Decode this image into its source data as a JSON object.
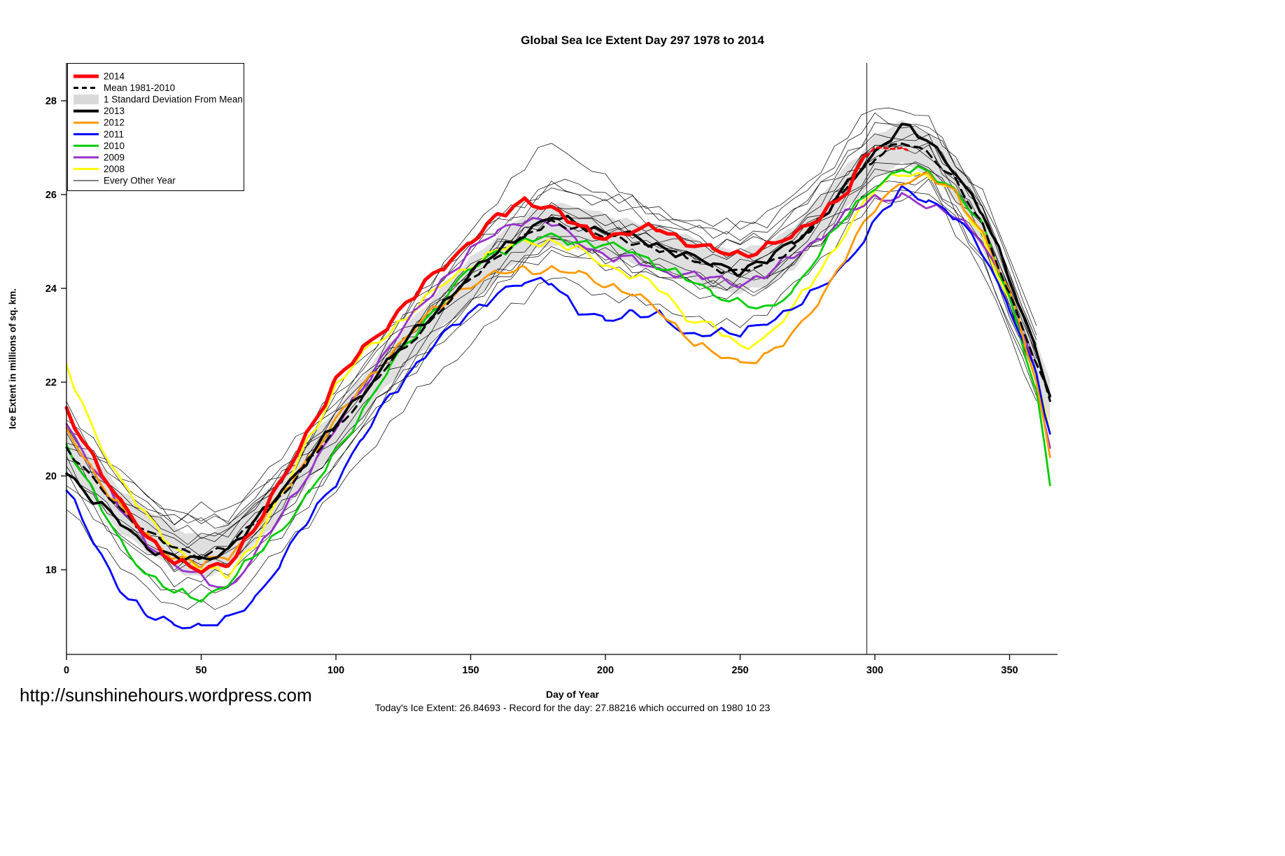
{
  "footer": {
    "url": "http://sunshinehours.wordpress.com",
    "stats": "Today's Ice Extent: 26.84693  - Record for the day: 27.88216 which occurred on 1980 10 23"
  },
  "legend": {
    "items": [
      {
        "label": "2014",
        "swatch": "line",
        "color": "#ff0000",
        "lw": 5
      },
      {
        "label": "Mean 1981-2010",
        "swatch": "dashed",
        "color": "#000000",
        "lw": 3
      },
      {
        "label": "1 Standard Deviation From Mean",
        "swatch": "band",
        "color": "#d9d9d9",
        "lw": 1
      },
      {
        "label": "2013",
        "swatch": "line",
        "color": "#000000",
        "lw": 4
      },
      {
        "label": "2012",
        "swatch": "line",
        "color": "#ff9900",
        "lw": 3
      },
      {
        "label": "2011",
        "swatch": "line",
        "color": "#0000ff",
        "lw": 3
      },
      {
        "label": "2010",
        "swatch": "line",
        "color": "#00cc00",
        "lw": 3
      },
      {
        "label": "2009",
        "swatch": "line",
        "color": "#9932cc",
        "lw": 3
      },
      {
        "label": "2008",
        "swatch": "line",
        "color": "#ffff00",
        "lw": 3
      },
      {
        "label": "Every Other Year",
        "swatch": "thin",
        "color": "#000000",
        "lw": 1
      }
    ]
  },
  "chart_data": {
    "type": "line",
    "title": "Global Sea Ice Extent Day 297 1978 to 2014",
    "xlabel": "Day of Year",
    "ylabel": "Ice Extent in millions of sq. km.",
    "x_ticks": [
      0,
      50,
      100,
      150,
      200,
      250,
      300,
      350
    ],
    "y_ticks": [
      18,
      20,
      22,
      24,
      26,
      28
    ],
    "xlim": [
      0,
      368
    ],
    "ylim": [
      16.2,
      28.8
    ],
    "vline_day": 297,
    "today": {
      "day": 297,
      "ice_extent": 26.84693,
      "record": 27.88216,
      "record_date": "1980 10 23"
    },
    "band": {
      "center": "Mean 1981-2010",
      "halfwidth": 0.45,
      "color": "#d9d9d9"
    },
    "x_days": [
      0,
      10,
      20,
      30,
      40,
      50,
      60,
      70,
      80,
      90,
      100,
      110,
      120,
      130,
      140,
      150,
      160,
      170,
      180,
      190,
      200,
      210,
      220,
      230,
      240,
      250,
      260,
      270,
      280,
      290,
      300,
      310,
      320,
      330,
      340,
      350,
      360,
      365
    ],
    "series": [
      {
        "name": "2008",
        "color": "#ffff00",
        "width": 2.8,
        "y": [
          22.3,
          21.0,
          19.9,
          19.1,
          18.5,
          18.0,
          17.9,
          18.6,
          19.6,
          20.8,
          21.9,
          22.6,
          23.1,
          23.6,
          24.1,
          24.5,
          24.8,
          25.0,
          25.0,
          24.8,
          24.5,
          24.3,
          24.0,
          23.4,
          23.2,
          22.7,
          23.0,
          23.6,
          24.4,
          25.3,
          26.1,
          26.5,
          26.4,
          26.0,
          25.1,
          23.7,
          22.1,
          20.9
        ]
      },
      {
        "name": "2009",
        "color": "#9932cc",
        "width": 2.8,
        "y": [
          21.1,
          20.2,
          19.3,
          18.6,
          18.1,
          17.8,
          17.6,
          18.3,
          19.2,
          20.1,
          21.0,
          21.9,
          22.8,
          23.5,
          24.2,
          24.8,
          25.2,
          25.5,
          25.4,
          25.0,
          24.7,
          24.6,
          24.4,
          24.3,
          24.2,
          24.1,
          24.3,
          24.7,
          25.1,
          25.6,
          25.9,
          26.0,
          25.7,
          25.6,
          25.0,
          23.8,
          22.2,
          20.6
        ]
      },
      {
        "name": "2010",
        "color": "#00cc00",
        "width": 2.8,
        "y": [
          20.7,
          19.6,
          18.6,
          17.9,
          17.5,
          17.4,
          17.7,
          18.3,
          18.9,
          19.6,
          20.5,
          21.4,
          22.3,
          23.1,
          23.8,
          24.4,
          24.8,
          25.0,
          25.1,
          25.0,
          24.9,
          24.8,
          24.5,
          24.2,
          23.9,
          23.7,
          23.5,
          24.0,
          24.8,
          25.6,
          26.2,
          26.5,
          26.5,
          26.1,
          25.3,
          23.8,
          21.8,
          19.8
        ]
      },
      {
        "name": "2011",
        "color": "#0000ff",
        "width": 2.8,
        "y": [
          19.7,
          18.6,
          17.6,
          17.0,
          16.85,
          16.8,
          16.9,
          17.4,
          18.2,
          19.1,
          19.9,
          20.8,
          21.7,
          22.4,
          23.0,
          23.5,
          23.9,
          24.1,
          24.2,
          23.5,
          23.3,
          23.5,
          23.4,
          23.0,
          23.1,
          23.0,
          23.3,
          23.6,
          24.0,
          24.6,
          25.4,
          26.1,
          25.9,
          25.5,
          24.8,
          23.6,
          22.1,
          20.9
        ]
      },
      {
        "name": "2012",
        "color": "#ff9900",
        "width": 2.8,
        "y": [
          21.0,
          20.1,
          19.3,
          18.7,
          18.3,
          18.1,
          18.3,
          18.9,
          19.6,
          20.4,
          21.2,
          21.9,
          22.6,
          23.2,
          23.7,
          24.1,
          24.3,
          24.4,
          24.4,
          24.3,
          24.1,
          23.9,
          23.5,
          23.0,
          22.6,
          22.4,
          22.6,
          23.0,
          23.8,
          24.8,
          25.7,
          26.3,
          26.4,
          26.0,
          25.2,
          23.9,
          22.0,
          20.4
        ]
      },
      {
        "name": "2013",
        "color": "#000000",
        "width": 3.6,
        "y": [
          20.1,
          19.5,
          19.0,
          18.5,
          18.25,
          18.2,
          18.45,
          19.0,
          19.7,
          20.4,
          21.1,
          21.8,
          22.5,
          23.1,
          23.7,
          24.3,
          24.8,
          25.2,
          25.5,
          25.4,
          25.2,
          25.1,
          24.9,
          24.7,
          24.5,
          24.4,
          24.6,
          25.0,
          25.5,
          26.2,
          26.9,
          27.5,
          27.1,
          26.5,
          25.6,
          24.2,
          22.7,
          21.7
        ]
      },
      {
        "name": "Mean 1981-2010",
        "color": "#000000",
        "width": 3,
        "dash": "11 8",
        "y": [
          20.6,
          19.9,
          19.3,
          18.8,
          18.45,
          18.3,
          18.5,
          19.0,
          19.6,
          20.3,
          21.0,
          21.7,
          22.4,
          23.0,
          23.6,
          24.2,
          24.7,
          25.1,
          25.4,
          25.3,
          25.1,
          25.0,
          24.85,
          24.65,
          24.45,
          24.35,
          24.5,
          24.9,
          25.5,
          26.2,
          26.8,
          27.1,
          26.9,
          26.3,
          25.3,
          23.9,
          22.4,
          21.6
        ]
      },
      {
        "name": "2014-extension",
        "color": "#ff0000",
        "width": 3,
        "dash": "5 5",
        "x": [
          297,
          302,
          307,
          312
        ],
        "y": [
          26.85,
          26.95,
          27.0,
          26.95
        ]
      },
      {
        "name": "2014",
        "color": "#ff0000",
        "width": 5,
        "x": [
          0,
          10,
          20,
          30,
          40,
          50,
          60,
          70,
          80,
          90,
          100,
          110,
          120,
          130,
          140,
          150,
          160,
          170,
          180,
          190,
          200,
          210,
          220,
          230,
          240,
          250,
          260,
          270,
          280,
          290,
          297
        ],
        "y": [
          21.4,
          20.4,
          19.4,
          18.7,
          18.2,
          17.95,
          18.15,
          18.9,
          19.9,
          21.0,
          22.0,
          22.7,
          23.3,
          23.9,
          24.5,
          25.0,
          25.5,
          25.9,
          25.7,
          25.3,
          25.1,
          25.2,
          25.3,
          25.0,
          24.8,
          24.7,
          24.9,
          25.1,
          25.6,
          26.1,
          26.85
        ]
      }
    ],
    "background": {
      "label": "Every Other Year",
      "x_days": [
        0,
        20,
        40,
        60,
        80,
        100,
        120,
        140,
        160,
        180,
        200,
        220,
        240,
        260,
        280,
        300,
        320,
        340,
        360
      ],
      "lines": [
        [
          21.2,
          20.0,
          19.2,
          19.3,
          20.4,
          21.8,
          23.2,
          24.4,
          25.5,
          26.3,
          26.0,
          25.7,
          25.3,
          25.4,
          26.4,
          27.6,
          27.5,
          25.9,
          23.0
        ],
        [
          21.0,
          19.8,
          19.0,
          19.1,
          20.2,
          21.6,
          23.0,
          24.3,
          25.4,
          26.2,
          25.9,
          25.6,
          25.2,
          25.5,
          26.6,
          27.9,
          27.6,
          26.0,
          23.2
        ],
        [
          20.8,
          19.4,
          18.6,
          18.7,
          20.0,
          21.5,
          23.1,
          24.5,
          25.9,
          27.2,
          26.3,
          25.5,
          25.0,
          25.0,
          25.9,
          27.0,
          26.9,
          25.4,
          22.6
        ],
        [
          20.0,
          18.6,
          17.8,
          17.9,
          19.0,
          20.3,
          21.7,
          22.9,
          24.0,
          24.8,
          24.5,
          24.2,
          23.8,
          24.0,
          25.0,
          26.2,
          26.3,
          24.7,
          21.8
        ],
        [
          19.4,
          18.0,
          17.2,
          17.3,
          18.4,
          19.7,
          21.1,
          22.3,
          23.4,
          24.2,
          23.9,
          23.6,
          23.2,
          23.5,
          24.6,
          25.9,
          26.0,
          24.4,
          21.6
        ],
        [
          20.9,
          19.6,
          18.8,
          18.8,
          19.9,
          21.3,
          22.7,
          23.9,
          25.0,
          25.7,
          25.4,
          25.1,
          24.8,
          24.8,
          25.8,
          27.1,
          27.2,
          25.6,
          22.7
        ],
        [
          20.4,
          19.1,
          18.2,
          18.3,
          19.4,
          20.8,
          22.2,
          23.4,
          24.5,
          25.2,
          24.9,
          24.6,
          24.2,
          24.3,
          25.3,
          26.6,
          26.7,
          25.1,
          22.2
        ],
        [
          21.4,
          20.1,
          19.1,
          19.0,
          20.0,
          21.3,
          22.6,
          23.8,
          24.9,
          25.6,
          25.3,
          25.0,
          24.6,
          24.7,
          25.7,
          27.0,
          27.0,
          25.4,
          22.5
        ],
        [
          19.9,
          18.4,
          17.5,
          17.6,
          18.8,
          20.2,
          21.8,
          23.1,
          24.3,
          25.1,
          24.8,
          24.5,
          24.1,
          24.2,
          25.2,
          26.5,
          26.6,
          25.0,
          22.1
        ],
        [
          20.6,
          19.2,
          18.4,
          18.5,
          19.7,
          21.1,
          22.5,
          23.7,
          24.8,
          25.5,
          25.2,
          24.9,
          24.5,
          24.6,
          25.6,
          26.9,
          27.0,
          25.3,
          22.4
        ],
        [
          20.7,
          19.5,
          18.7,
          18.8,
          19.9,
          21.2,
          22.6,
          23.8,
          25.0,
          25.8,
          25.5,
          25.2,
          24.9,
          25.1,
          26.1,
          27.5,
          27.4,
          25.8,
          22.9
        ],
        [
          20.3,
          19.0,
          18.1,
          18.2,
          19.3,
          20.6,
          22.0,
          23.2,
          24.3,
          25.0,
          24.7,
          24.4,
          24.0,
          24.1,
          25.0,
          26.1,
          26.2,
          24.6,
          21.7
        ],
        [
          21.1,
          19.9,
          19.0,
          19.0,
          20.1,
          21.5,
          22.9,
          24.2,
          25.3,
          26.1,
          25.8,
          25.4,
          25.1,
          25.2,
          26.2,
          27.3,
          27.2,
          25.7,
          22.8
        ],
        [
          20.1,
          18.8,
          18.0,
          18.1,
          19.2,
          20.5,
          21.9,
          23.1,
          24.2,
          24.9,
          24.6,
          24.3,
          24.0,
          24.2,
          25.1,
          26.4,
          26.5,
          24.9,
          22.0
        ]
      ]
    }
  }
}
